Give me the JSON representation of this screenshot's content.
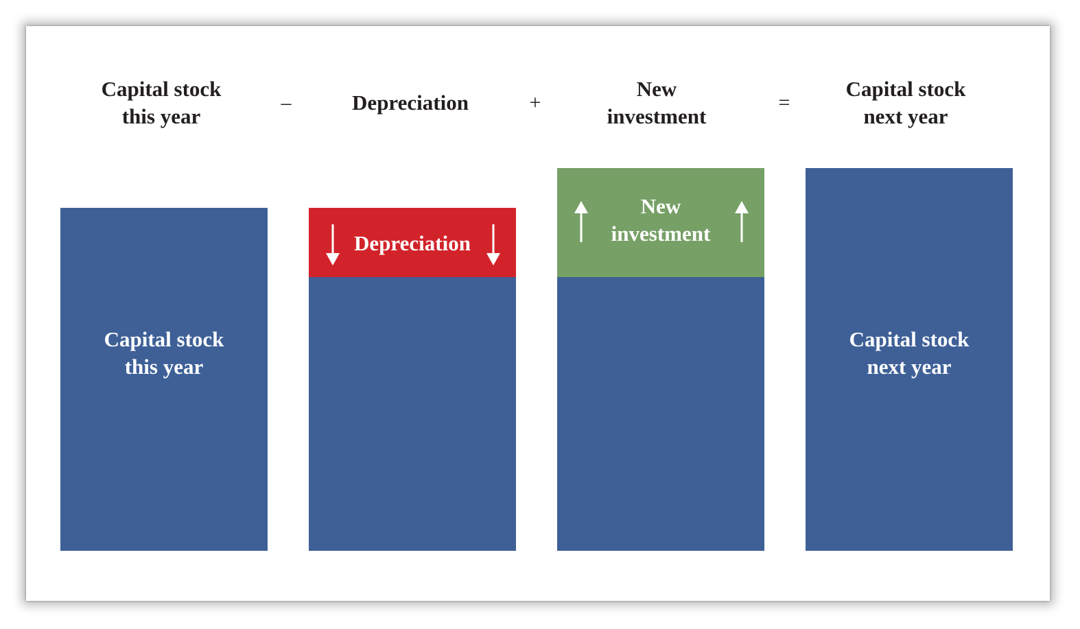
{
  "headers": {
    "capital_this_year": "Capital stock\nthis year",
    "depreciation": "Depreciation",
    "new_investment": "New\ninvestment",
    "capital_next_year": "Capital stock\nnext year"
  },
  "operators": {
    "minus": "–",
    "plus": "+",
    "equals": "="
  },
  "bars": {
    "capital_this_year": "Capital stock\nthis year",
    "depreciation_band": "Depreciation",
    "investment_band": "New\ninvestment",
    "capital_next_year": "Capital stock\nnext year"
  },
  "icons": {
    "depreciation": "down-arrow-icon",
    "investment": "up-arrow-icon"
  },
  "colors": {
    "capital": "#3e6097",
    "depreciation": "#d2232a",
    "investment": "#77a067",
    "text_dark": "#231f20"
  }
}
